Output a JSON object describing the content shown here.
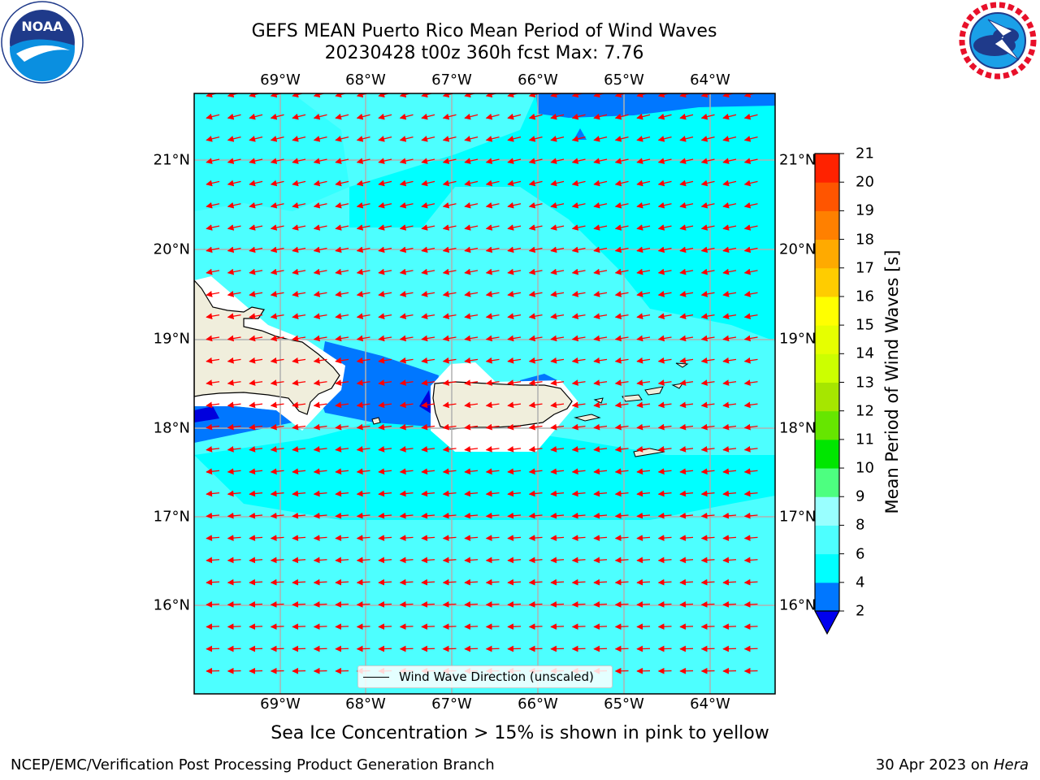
{
  "title": "GEFS MEAN Puerto Rico Mean Period of Wind Waves",
  "subtitle": "20230428 t00z 360h fcst   Max: 7.76",
  "logos": {
    "left": {
      "name": "noaa-logo",
      "text": "NOAA",
      "ring_text": "NATIONAL OCEANIC AND ATMOSPHERIC ADMINISTRATION · U.S. DEPARTMENT OF COMMERCE"
    },
    "right": {
      "name": "nws-logo",
      "ring_text": "NATIONAL WEATHER SERVICE"
    }
  },
  "map": {
    "lon_labels": [
      "69°W",
      "68°W",
      "67°W",
      "66°W",
      "65°W",
      "64°W"
    ],
    "lat_labels": [
      "21°N",
      "20°N",
      "19°N",
      "18°N",
      "17°N",
      "16°N"
    ],
    "legend_label": "Wind Wave Direction (unscaled)",
    "colors": {
      "ocean_main": "#00ffff",
      "ocean_light": "#4dffff",
      "ocean_blue": "#0077ff",
      "ocean_dark": "#0000dd",
      "land": "#f0eedc",
      "arrow": "#ff0000",
      "grid": "#b0b0b0"
    }
  },
  "colorbar": {
    "title": "Mean Period of Wind Waves [s]",
    "ticks": [
      "2",
      "4",
      "6",
      "8",
      "9",
      "10",
      "11",
      "12",
      "13",
      "14",
      "15",
      "16",
      "17",
      "18",
      "19",
      "20",
      "21"
    ],
    "colors": [
      "#0077ff",
      "#00ffff",
      "#4dffff",
      "#99ffff",
      "#4dff80",
      "#00e600",
      "#66e600",
      "#a6e600",
      "#ccff00",
      "#e6ff00",
      "#ffff00",
      "#ffcc00",
      "#ffaa00",
      "#ff8000",
      "#ff5500",
      "#ff2200"
    ],
    "under_color": "#0000ee"
  },
  "caption": "Sea Ice Concentration > 15% is shown in pink to yellow",
  "footer_left": "NCEP/EMC/Verification Post Processing Product Generation Branch",
  "footer_right_prefix": "30 Apr 2023 on ",
  "footer_right_host": "Hera"
}
